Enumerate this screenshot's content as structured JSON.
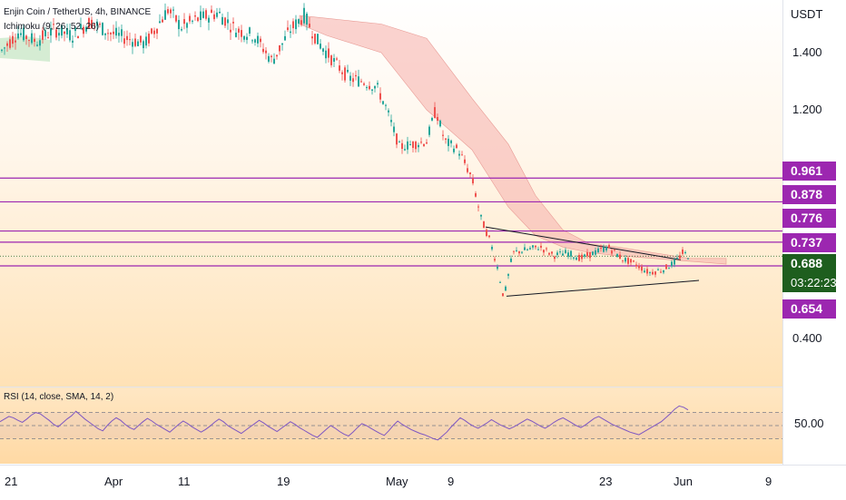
{
  "legend": {
    "symbol": "Enjin Coin / TetherUS, 4h, BINANCE",
    "ichimoku": "Ichimoku (9, 26, 52, 26)",
    "rsi": "RSI (14, close, SMA, 14, 2)"
  },
  "currency": "USDT",
  "colors": {
    "up": "#26a69a",
    "down": "#ef5350",
    "line": "#9c27b0",
    "current": "#1e5e1e",
    "rsi": "#7e57c2",
    "cloud_bear": "#f7b5b0",
    "cloud_bull": "#c3e6c3"
  },
  "price_axis_ticks": [
    "1.400",
    "1.200",
    "0.400"
  ],
  "level_labels": [
    "0.961",
    "0.878",
    "0.776",
    "0.737",
    "0.654"
  ],
  "current_price": {
    "value": "0.688",
    "countdown": "03:22:23"
  },
  "rsi_axis_tick": "50.00",
  "time_axis_ticks": [
    "21",
    "Apr",
    "11",
    "19",
    "May",
    "9",
    "23",
    "Jun",
    "9"
  ],
  "chart_data": {
    "type": "line",
    "title": "Enjin Coin / TetherUS, 4h, BINANCE",
    "ylabel": "USDT",
    "ylim": [
      0.33,
      1.55
    ],
    "x_ticks": [
      "21",
      "Apr",
      "11",
      "19",
      "May",
      "9",
      "23",
      "Jun",
      "9"
    ],
    "horizontal_levels": [
      0.961,
      0.878,
      0.776,
      0.737,
      0.654
    ],
    "series": [
      {
        "points": [
          [
            0,
            1.4
          ],
          [
            20,
            1.47
          ],
          [
            40,
            1.44
          ],
          [
            60,
            1.48
          ],
          [
            80,
            1.46
          ],
          [
            100,
            1.51
          ],
          [
            120,
            1.47
          ],
          [
            140,
            1.45
          ],
          [
            160,
            1.43
          ],
          [
            185,
            1.55
          ],
          [
            200,
            1.49
          ],
          [
            220,
            1.52
          ],
          [
            240,
            1.54
          ],
          [
            260,
            1.48
          ],
          [
            280,
            1.46
          ],
          [
            300,
            1.37
          ],
          [
            320,
            1.48
          ],
          [
            335,
            1.53
          ],
          [
            350,
            1.44
          ],
          [
            370,
            1.36
          ],
          [
            385,
            1.31
          ],
          [
            400,
            1.3
          ],
          [
            415,
            1.28
          ],
          [
            425,
            1.21
          ],
          [
            440,
            1.07
          ],
          [
            455,
            1.08
          ],
          [
            470,
            1.09
          ],
          [
            480,
            1.2
          ],
          [
            490,
            1.09
          ],
          [
            505,
            1.06
          ],
          [
            520,
            0.96
          ],
          [
            530,
            0.82
          ],
          [
            540,
            0.74
          ],
          [
            548,
            0.65
          ],
          [
            555,
            0.54
          ],
          [
            565,
            0.7
          ],
          [
            580,
            0.71
          ],
          [
            595,
            0.72
          ],
          [
            610,
            0.69
          ],
          [
            625,
            0.7
          ],
          [
            640,
            0.68
          ],
          [
            655,
            0.7
          ],
          [
            670,
            0.72
          ],
          [
            685,
            0.68
          ],
          [
            700,
            0.66
          ],
          [
            715,
            0.63
          ],
          [
            730,
            0.64
          ],
          [
            745,
            0.67
          ],
          [
            752,
            0.7
          ],
          [
            758,
            0.69
          ]
        ]
      }
    ],
    "ichimoku_cloud": {
      "upper": [
        [
          330,
          1.53
        ],
        [
          360,
          1.52
        ],
        [
          420,
          1.5
        ],
        [
          470,
          1.45
        ],
        [
          520,
          1.24
        ],
        [
          560,
          1.08
        ],
        [
          590,
          0.9
        ],
        [
          620,
          0.78
        ],
        [
          650,
          0.73
        ],
        [
          680,
          0.72
        ],
        [
          720,
          0.7
        ],
        [
          760,
          0.68
        ],
        [
          800,
          0.68
        ]
      ],
      "lower": [
        [
          330,
          1.5
        ],
        [
          360,
          1.46
        ],
        [
          420,
          1.4
        ],
        [
          470,
          1.2
        ],
        [
          520,
          1.06
        ],
        [
          560,
          0.86
        ],
        [
          590,
          0.76
        ],
        [
          620,
          0.72
        ],
        [
          650,
          0.7
        ],
        [
          680,
          0.69
        ],
        [
          720,
          0.68
        ],
        [
          760,
          0.67
        ],
        [
          800,
          0.66
        ]
      ]
    },
    "triangle": {
      "upper": [
        [
          535,
          0.79
        ],
        [
          750,
          0.675
        ]
      ],
      "lower": [
        [
          558,
          0.548
        ],
        [
          770,
          0.603
        ]
      ]
    },
    "rsi": {
      "ylim": [
        0,
        100
      ],
      "band": [
        30,
        70
      ],
      "values": [
        56,
        60,
        64,
        62,
        58,
        55,
        60,
        66,
        70,
        68,
        63,
        58,
        52,
        48,
        54,
        60,
        65,
        72,
        66,
        60,
        55,
        50,
        45,
        42,
        50,
        57,
        62,
        58,
        52,
        47,
        44,
        50,
        56,
        61,
        57,
        52,
        48,
        44,
        40,
        46,
        52,
        57,
        53,
        48,
        44,
        40,
        44,
        49,
        55,
        60,
        56,
        50,
        46,
        42,
        38,
        43,
        48,
        53,
        58,
        54,
        49,
        45,
        41,
        46,
        51,
        56,
        52,
        47,
        43,
        39,
        35,
        32,
        38,
        44,
        50,
        46,
        41,
        37,
        34,
        40,
        47,
        53,
        50,
        46,
        42,
        38,
        35,
        42,
        50,
        57,
        52,
        48,
        44,
        41,
        38,
        36,
        33,
        30,
        28,
        34,
        40,
        48,
        55,
        62,
        58,
        53,
        49,
        46,
        50,
        54,
        59,
        55,
        51,
        48,
        45,
        48,
        52,
        56,
        60,
        57,
        53,
        49,
        46,
        50,
        55,
        59,
        62,
        58,
        54,
        50,
        47,
        51,
        56,
        61,
        64,
        60,
        56,
        52,
        49,
        46,
        43,
        40,
        38,
        36,
        40,
        44,
        48,
        52,
        56,
        62,
        68,
        75,
        80,
        78,
        74
      ]
    }
  }
}
